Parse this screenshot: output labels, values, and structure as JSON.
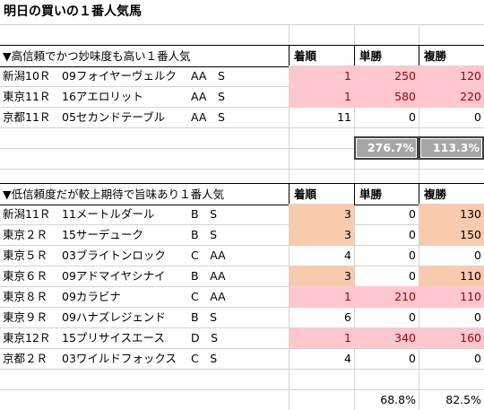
{
  "title": "明日の買いの１番人気馬",
  "high": {
    "heading": "▼高信頼でかつ妙味度も高い１番人気",
    "columns": [
      "着順",
      "単勝",
      "複勝"
    ],
    "rows": [
      {
        "race": "新潟10Ｒ",
        "horse": "09フォイヤーヴェルク",
        "marks": "AA　S",
        "rank": "1",
        "win": "250",
        "place": "120",
        "rank_bg": "pink",
        "win_bg": "pink",
        "place_bg": "pink"
      },
      {
        "race": "東京11Ｒ",
        "horse": "16アエロリット",
        "marks": "AA　S",
        "rank": "1",
        "win": "580",
        "place": "220",
        "rank_bg": "pink",
        "win_bg": "pink",
        "place_bg": "pink"
      },
      {
        "race": "京都11Ｒ",
        "horse": "05セカンドテーブル",
        "marks": "AA　S",
        "rank": "11",
        "win": "0",
        "place": "0",
        "rank_bg": "none",
        "win_bg": "none",
        "place_bg": "none"
      }
    ],
    "summary": {
      "win": "276.7%",
      "place": "113.3%"
    }
  },
  "low": {
    "heading": "▼低信頼度だが較上期待で旨味あり１番人気",
    "columns": [
      "着順",
      "単勝",
      "複勝"
    ],
    "rows": [
      {
        "race": "新潟11Ｒ",
        "horse": "11メートルダール",
        "marks": "B　S",
        "rank": "3",
        "win": "0",
        "place": "130",
        "rank_bg": "orange",
        "win_bg": "none",
        "place_bg": "orange"
      },
      {
        "race": "東京２Ｒ",
        "horse": "15サーデューク",
        "marks": "B　S",
        "rank": "3",
        "win": "0",
        "place": "150",
        "rank_bg": "orange",
        "win_bg": "none",
        "place_bg": "orange"
      },
      {
        "race": "東京５Ｒ",
        "horse": "03ブライトンロック",
        "marks": "C　AA",
        "rank": "4",
        "win": "0",
        "place": "0",
        "rank_bg": "none",
        "win_bg": "none",
        "place_bg": "none"
      },
      {
        "race": "東京６Ｒ",
        "horse": "09アドマイヤシナイ",
        "marks": "B　AA",
        "rank": "3",
        "win": "0",
        "place": "110",
        "rank_bg": "orange",
        "win_bg": "none",
        "place_bg": "orange"
      },
      {
        "race": "東京８Ｒ",
        "horse": "09カラビナ",
        "marks": "C　AA",
        "rank": "1",
        "win": "210",
        "place": "110",
        "rank_bg": "pink",
        "win_bg": "pink",
        "place_bg": "pink"
      },
      {
        "race": "東京９Ｒ",
        "horse": "09ハナズレジェンド",
        "marks": "B　S",
        "rank": "6",
        "win": "0",
        "place": "0",
        "rank_bg": "none",
        "win_bg": "none",
        "place_bg": "none"
      },
      {
        "race": "東京12Ｒ",
        "horse": "15プリサイスエース",
        "marks": "D　S",
        "rank": "1",
        "win": "340",
        "place": "160",
        "rank_bg": "pink",
        "win_bg": "pink",
        "place_bg": "pink"
      },
      {
        "race": "京都２Ｒ",
        "horse": "03ワイルドフォックス",
        "marks": "C　S",
        "rank": "4",
        "win": "0",
        "place": "0",
        "rank_bg": "none",
        "win_bg": "none",
        "place_bg": "none"
      }
    ],
    "summary": {
      "win": "68.8%",
      "place": "82.5%"
    }
  },
  "colors": {
    "pink_fill": "#ffc7ce",
    "pink_text": "#9c0006",
    "orange_fill": "#f8cbad",
    "summary_fill": "#a6a6a6",
    "grid": "#d4d4d4"
  }
}
